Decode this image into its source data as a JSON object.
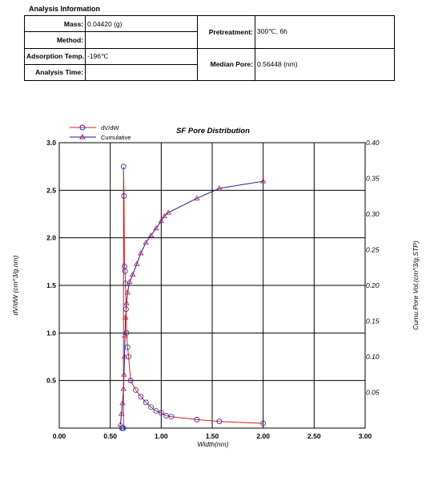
{
  "analysis": {
    "section_title": "Analysis Information",
    "mass_label": "Mass:",
    "mass_value": "0.04420 (g)",
    "method_label": "Method:",
    "method_value": "",
    "adsorption_temp_label": "Adsorption Temp.:",
    "adsorption_temp_value": "-196℃",
    "analysis_time_label": "Analysis Time:",
    "analysis_time_value": "",
    "pretreatment_label": "Pretreatment:",
    "pretreatment_value": "300℃, 6h",
    "median_pore_label": "Median Pore:",
    "median_pore_value": "0.56448 (nm)"
  },
  "chart_data": {
    "type": "line",
    "title": "SF Pore Distribution",
    "xlabel": "Width(nm)",
    "ylabel": "dV/dW (cm^3/g.nm)",
    "y2label": "Cumu.Pore Vol.(cm^3/g,STP)",
    "xlim": [
      0,
      3
    ],
    "ylim": [
      0,
      3
    ],
    "y2lim": [
      0,
      0.4
    ],
    "xticks": [
      "0.00",
      "0.50",
      "1.00",
      "1.50",
      "2.00",
      "2.50",
      "3.00"
    ],
    "yticks": [
      "0.5",
      "1.0",
      "1.5",
      "2.0",
      "2.5",
      "3.0"
    ],
    "y2ticks": [
      "0.05",
      "0.10",
      "0.15",
      "0.20",
      "0.25",
      "0.30",
      "0.35",
      "0.40"
    ],
    "grid": true,
    "legend_position": "top-left",
    "series": [
      {
        "name": "dV/dW",
        "axis": "left",
        "color": "#d91e1e",
        "marker_color": "#2a2aa8",
        "marker": "circle",
        "x": [
          0.63,
          0.63,
          0.635,
          0.64,
          0.645,
          0.65,
          0.655,
          0.66,
          0.67,
          0.68,
          0.7,
          0.75,
          0.8,
          0.85,
          0.9,
          0.95,
          1.0,
          1.05,
          1.1,
          1.35,
          1.57,
          2.0,
          0.615,
          0.62
        ],
        "y": [
          0.0,
          2.75,
          2.44,
          1.7,
          1.65,
          1.52,
          1.25,
          1.0,
          0.85,
          0.75,
          0.5,
          0.4,
          0.33,
          0.27,
          0.22,
          0.18,
          0.16,
          0.13,
          0.12,
          0.09,
          0.07,
          0.05,
          0.0,
          0.0
        ]
      },
      {
        "name": "Cumulative",
        "axis": "right",
        "color": "#1a1a8c",
        "marker_color": "#b01a5a",
        "marker": "triangle",
        "x": [
          0.6,
          0.61,
          0.62,
          0.63,
          0.635,
          0.64,
          0.645,
          0.65,
          0.66,
          0.67,
          0.69,
          0.72,
          0.76,
          0.8,
          0.85,
          0.9,
          0.95,
          1.0,
          1.03,
          1.07,
          1.35,
          1.57,
          2.0
        ],
        "y": [
          0.005,
          0.02,
          0.035,
          0.055,
          0.075,
          0.1,
          0.13,
          0.155,
          0.175,
          0.19,
          0.205,
          0.215,
          0.23,
          0.245,
          0.26,
          0.27,
          0.28,
          0.29,
          0.297,
          0.302,
          0.322,
          0.336,
          0.346
        ]
      }
    ]
  }
}
